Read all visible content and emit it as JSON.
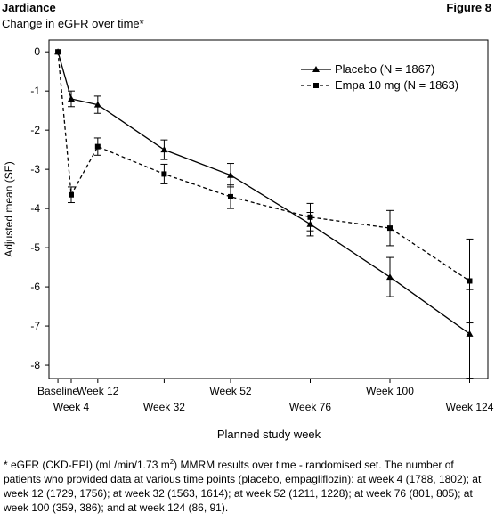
{
  "title": "Jardiance",
  "figure_label": "Figure 8",
  "chart_data": {
    "type": "line",
    "subtitle": "Change in eGFR over time*",
    "x_label": "Planned study week",
    "y_label": "Adjusted mean (SE)",
    "x": [
      0,
      4,
      12,
      32,
      52,
      76,
      100,
      124
    ],
    "xlim": [
      -2.7,
      129.5
    ],
    "xticks": [
      {
        "value": 0,
        "label": "Baseline"
      },
      {
        "value": 4,
        "label": "Week 4"
      },
      {
        "value": 12,
        "label": "Week 12"
      },
      {
        "value": 32,
        "label": "Week 32"
      },
      {
        "value": 52,
        "label": "Week 52"
      },
      {
        "value": 76,
        "label": "Week 76"
      },
      {
        "value": 100,
        "label": "Week 100"
      },
      {
        "value": 124,
        "label": "Week 124"
      }
    ],
    "ylim": [
      -8.34,
      0.3
    ],
    "yticks": [
      0,
      -1,
      -2,
      -3,
      -4,
      -5,
      -6,
      -7,
      -8
    ],
    "legend": "top-right",
    "series": [
      {
        "name": "Placebo (N = 1867)",
        "color": "#000000",
        "marker": "triangle",
        "dash": "solid",
        "values": [
          0,
          -1.2,
          -1.35,
          -2.5,
          -3.15,
          -4.4,
          -5.75,
          -7.2
        ],
        "errors": [
          0,
          0.2,
          0.22,
          0.25,
          0.3,
          0.3,
          0.5,
          1.13
        ]
      },
      {
        "name": "Empa 10 mg (N = 1863)",
        "color": "#000000",
        "marker": "square",
        "dash": "dashed",
        "values": [
          0,
          -3.65,
          -2.42,
          -3.12,
          -3.7,
          -4.22,
          -4.5,
          -5.85
        ],
        "errors": [
          0,
          0.2,
          0.22,
          0.25,
          0.3,
          0.35,
          0.45,
          1.07
        ]
      }
    ]
  },
  "footnote": {
    "before": "* eGFR (CKD-EPI) (mL/min/1.73 m",
    "superscript": "2",
    "after": ") MMRM results over time - randomised set. The number of patients who provided data at various time points (placebo, empagliflozin): at week 4 (1788, 1802); at week 12 (1729, 1756); at week 32 (1563, 1614); at week 52 (1211, 1228); at week 76 (801, 805); at week 100 (359, 386); and at week 124 (86, 91)."
  }
}
